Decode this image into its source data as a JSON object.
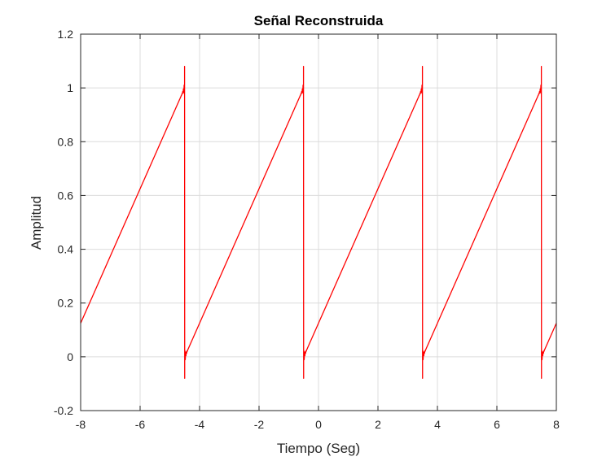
{
  "chart_data": {
    "type": "line",
    "title": "Señal Reconstruida",
    "xlabel": "Tiempo (Seg)",
    "ylabel": "Amplitud",
    "xlim": [
      -8,
      8
    ],
    "ylim": [
      -0.2,
      1.2
    ],
    "xticks": [
      -8,
      -6,
      -4,
      -2,
      0,
      2,
      4,
      6,
      8
    ],
    "yticks": [
      -0.2,
      0,
      0.2,
      0.4,
      0.6,
      0.8,
      1,
      1.2
    ],
    "grid": true,
    "series": [
      {
        "color": "#ff0000",
        "signal": "sawtooth",
        "period": 4,
        "fall_times": [
          -4.5,
          -0.5,
          3.5,
          7.5
        ],
        "x_range": [
          -8,
          8
        ],
        "y_range": [
          0,
          1
        ],
        "gibbs_peak_max": 1.08,
        "gibbs_peak_min": -0.08
      }
    ]
  }
}
